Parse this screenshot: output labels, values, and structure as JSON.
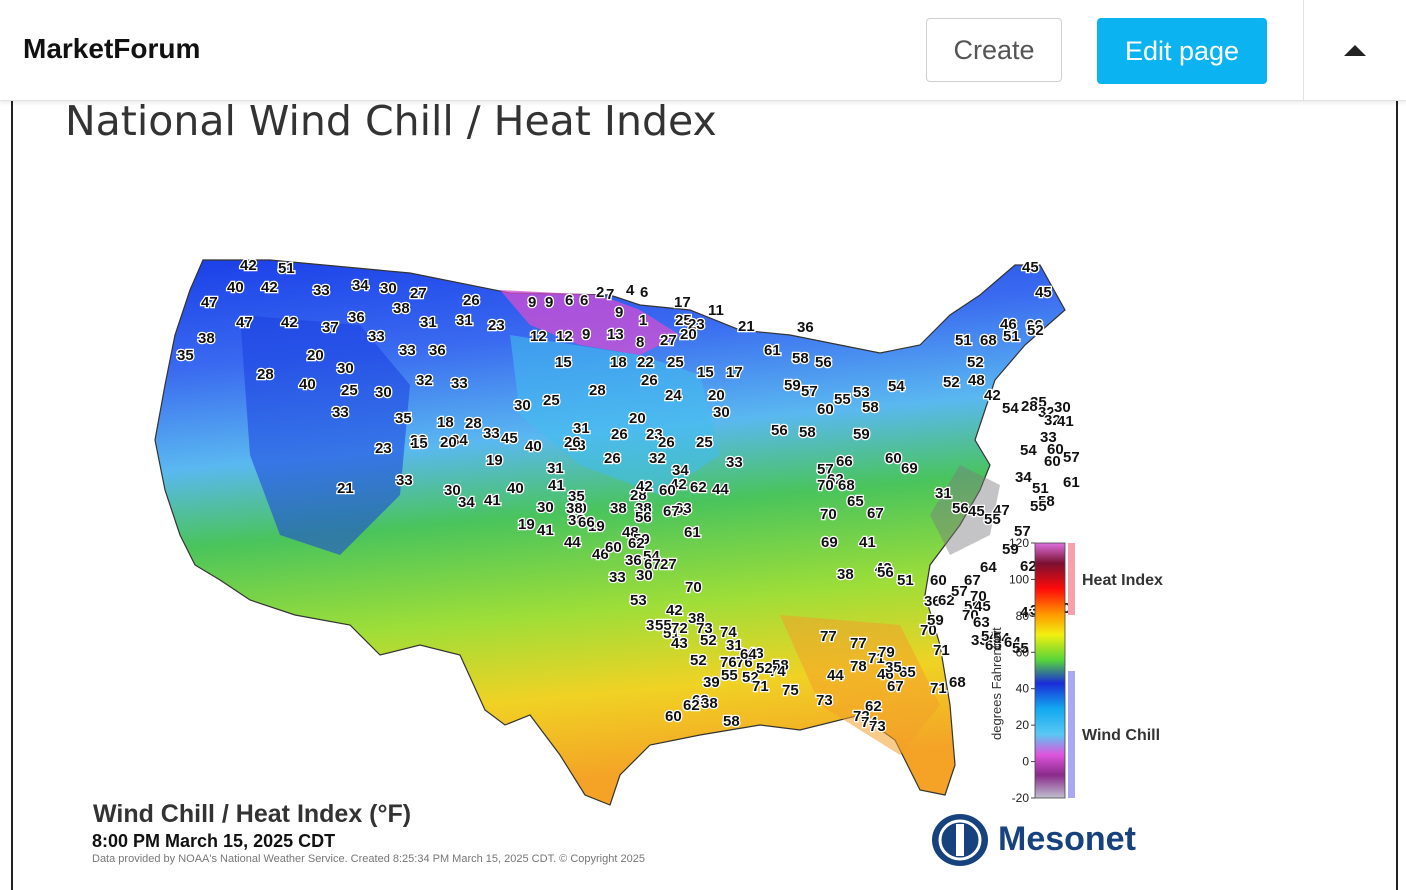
{
  "header": {
    "brand": "MarketForum",
    "create_label": "Create",
    "edit_label": "Edit page"
  },
  "page": {
    "title": "National Wind Chill / Heat Index"
  },
  "map": {
    "caption_title": "Wind Chill / Heat Index (°F)",
    "caption_time": "8:00 PM March 15, 2025 CDT",
    "credit": "Data provided by NOAA's National Weather Service. Created 8:25:34 PM March 15, 2025 CDT. © Copyright 2025",
    "brand": "Mesonet",
    "legend": {
      "axis_label": "degrees Fahrenheit",
      "ticks": [
        "120",
        "100",
        "80",
        "60",
        "40",
        "20",
        "0",
        "-20"
      ],
      "heat_label": "Heat Index",
      "chill_label": "Wind Chill"
    },
    "colors": {
      "heat_bar": "#f7a1ad",
      "chill_bar": "#a9a9f3",
      "mesonet_blue": "#17427e"
    },
    "values": [
      "42",
      "51",
      "40",
      "42",
      "33",
      "34",
      "30",
      "27",
      "26",
      "47",
      "38",
      "31",
      "31",
      "23",
      "36",
      "47",
      "42",
      "37",
      "38",
      "33",
      "33",
      "36",
      "35",
      "20",
      "28",
      "30",
      "40",
      "25",
      "30",
      "32",
      "33",
      "33",
      "35",
      "18",
      "28",
      "30",
      "25",
      "33",
      "23",
      "34",
      "45",
      "23",
      "15",
      "20",
      "19",
      "40",
      "31",
      "35",
      "28",
      "30",
      "21",
      "33",
      "30",
      "34",
      "41",
      "40",
      "19",
      "30",
      "38",
      "41",
      "46",
      "36",
      "19",
      "44",
      "33",
      "30",
      "27",
      "38",
      "42",
      "38",
      "51",
      "52",
      "31",
      "43",
      "48",
      "54",
      "53",
      "55",
      "43",
      "52",
      "55",
      "52",
      "58",
      "44",
      "62",
      "65",
      "71",
      "68",
      "70",
      "71",
      "9",
      "9",
      "6",
      "6",
      "2",
      "7",
      "4",
      "6",
      "17",
      "11",
      "9",
      "1",
      "25",
      "23",
      "21",
      "12",
      "12",
      "9",
      "13",
      "8",
      "27",
      "20",
      "15",
      "18",
      "22",
      "25",
      "15",
      "17",
      "26",
      "24",
      "20",
      "28",
      "20",
      "30",
      "23",
      "26",
      "23",
      "26",
      "26",
      "25",
      "26",
      "31",
      "32",
      "34",
      "33",
      "30",
      "38",
      "38",
      "42",
      "42",
      "44",
      "38",
      "41",
      "56",
      "59",
      "61",
      "60",
      "62",
      "66",
      "60",
      "62",
      "63",
      "67",
      "67",
      "70",
      "72",
      "73",
      "74",
      "76",
      "76",
      "74",
      "71",
      "75",
      "73",
      "72",
      "74",
      "73",
      "77",
      "77",
      "71",
      "79",
      "78",
      "46",
      "35",
      "67",
      "52",
      "64",
      "39",
      "63",
      "62",
      "38",
      "60",
      "58",
      "36",
      "61",
      "58",
      "56",
      "59",
      "57",
      "55",
      "53",
      "58",
      "60",
      "56",
      "58",
      "54",
      "59",
      "60",
      "69",
      "57",
      "62",
      "70",
      "68",
      "66",
      "65",
      "67",
      "70",
      "69",
      "41",
      "38",
      "42",
      "56",
      "51",
      "36",
      "62",
      "59",
      "45",
      "46",
      "33",
      "62",
      "41",
      "40",
      "33",
      "65",
      "45",
      "45",
      "51",
      "68",
      "51",
      "46",
      "66",
      "52",
      "52",
      "48",
      "52",
      "42",
      "54",
      "35",
      "32",
      "28",
      "32",
      "30",
      "41",
      "33",
      "54",
      "34",
      "51",
      "47",
      "45",
      "31",
      "56",
      "55",
      "60",
      "57",
      "60",
      "61",
      "58",
      "55",
      "57",
      "59",
      "62",
      "64",
      "67",
      "60",
      "57",
      "70",
      "70",
      "63",
      "59",
      "54",
      "54",
      "64",
      "55",
      "57",
      "63",
      "69",
      "71",
      "69",
      "70",
      "73",
      "72",
      "75",
      "73"
    ]
  }
}
